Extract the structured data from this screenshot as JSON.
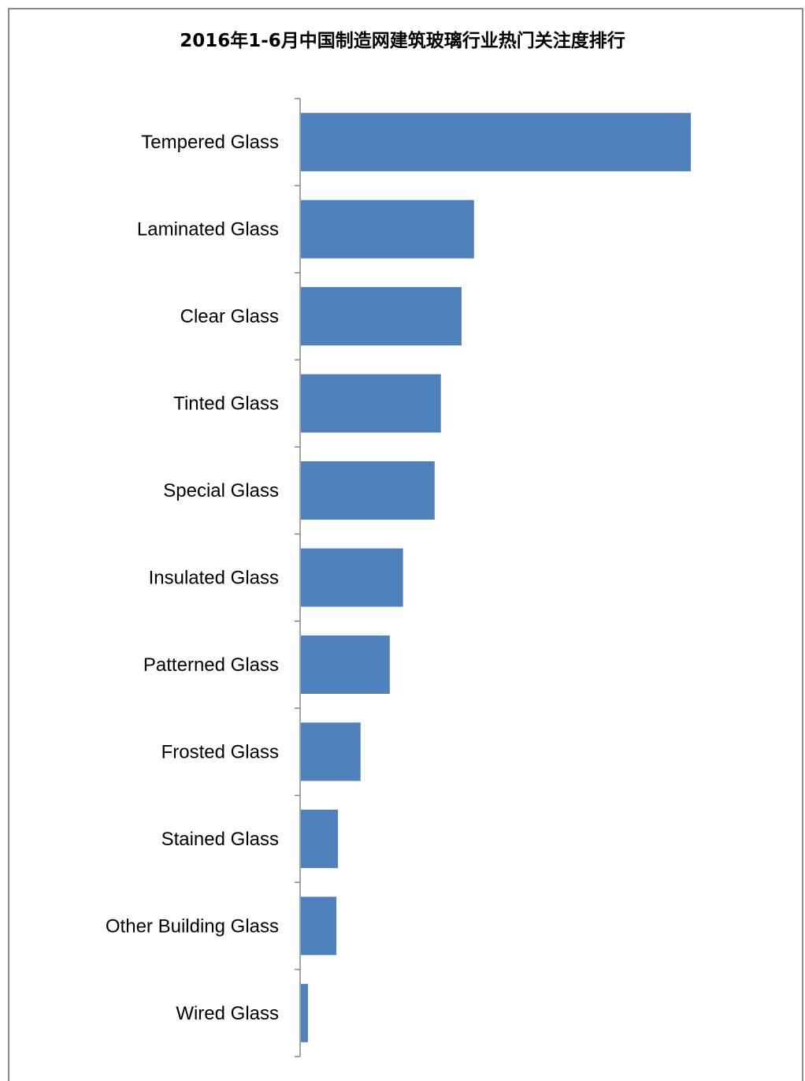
{
  "chart_data": {
    "type": "bar",
    "orientation": "horizontal",
    "title": "2016年1-6月中国制造网建筑玻璃行业热门关注度排行",
    "categories": [
      "Tempered Glass",
      "Laminated Glass",
      "Clear Glass",
      "Tinted Glass",
      "Special Glass",
      "Insulated Glass",
      "Patterned Glass",
      "Frosted Glass",
      "Stained Glass",
      "Other Building Glass",
      "Wired Glass"
    ],
    "values": [
      100,
      44.4,
      41.2,
      35.9,
      34.3,
      26.2,
      22.8,
      15.3,
      9.5,
      9.1,
      1.8
    ],
    "bar_color": "#4f81bd",
    "axis_color": "#868686",
    "value_axis_visible": false,
    "grid": false
  }
}
